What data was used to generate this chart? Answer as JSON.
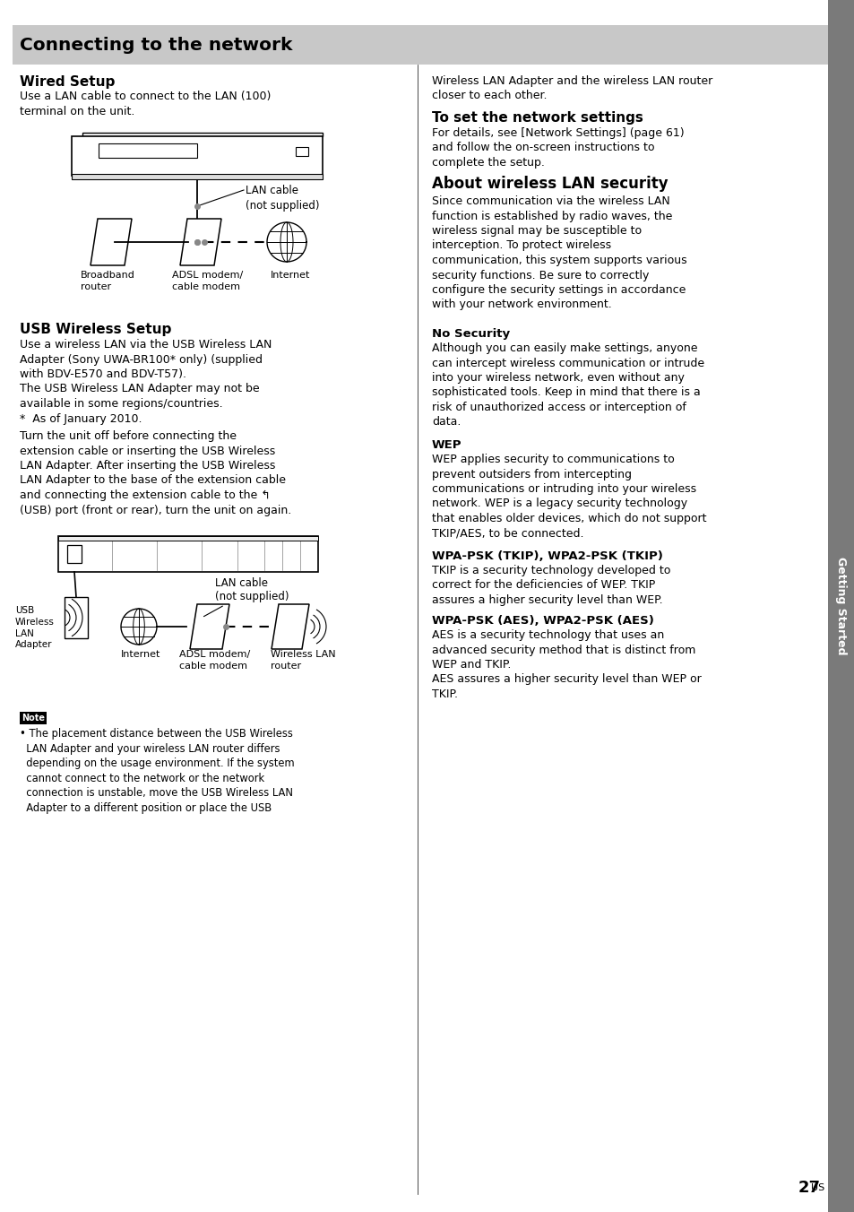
{
  "page_bg": "#ffffff",
  "sidebar_bg": "#7a7a7a",
  "header_bg": "#c8c8c8",
  "header_text": "Connecting to the network",
  "page_number": "27",
  "sidebar_text": "Getting Started",
  "figw": 9.54,
  "figh": 13.52,
  "dpi": 100
}
